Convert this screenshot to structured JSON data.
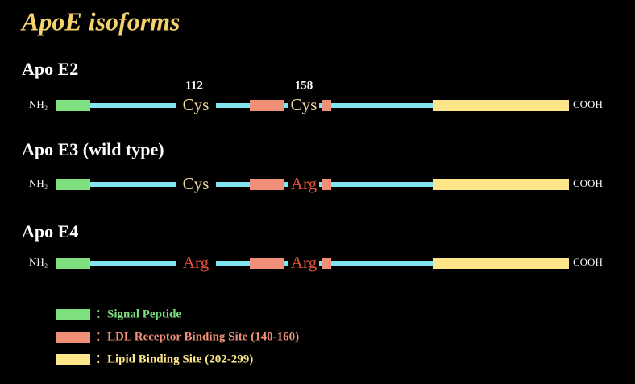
{
  "title": "ApoE isoforms",
  "positions": [
    "112",
    "158"
  ],
  "isoforms": [
    {
      "name": "Apo E2",
      "residues": [
        {
          "label": "Cys",
          "color": "#f6dca0"
        },
        {
          "label": "Cys",
          "color": "#f6dca0"
        }
      ]
    },
    {
      "name": "Apo E3 (wild type)",
      "residues": [
        {
          "label": "Cys",
          "color": "#f6dca0"
        },
        {
          "label": "Arg",
          "color": "#e2503c"
        }
      ]
    },
    {
      "name": "Apo E4",
      "residues": [
        {
          "label": "Arg",
          "color": "#e2503c"
        },
        {
          "label": "Arg",
          "color": "#e2503c"
        }
      ]
    }
  ],
  "n_terminus": "NH₂",
  "c_terminus": "COOH",
  "legend": [
    {
      "label": "：Signal Peptide",
      "color": "#7fe07f"
    },
    {
      "label": "：LDL Receptor Binding Site (140-160)",
      "color": "#f09078"
    },
    {
      "label": "：Lipid Binding Site (202-299)",
      "color": "#fde68a"
    }
  ]
}
